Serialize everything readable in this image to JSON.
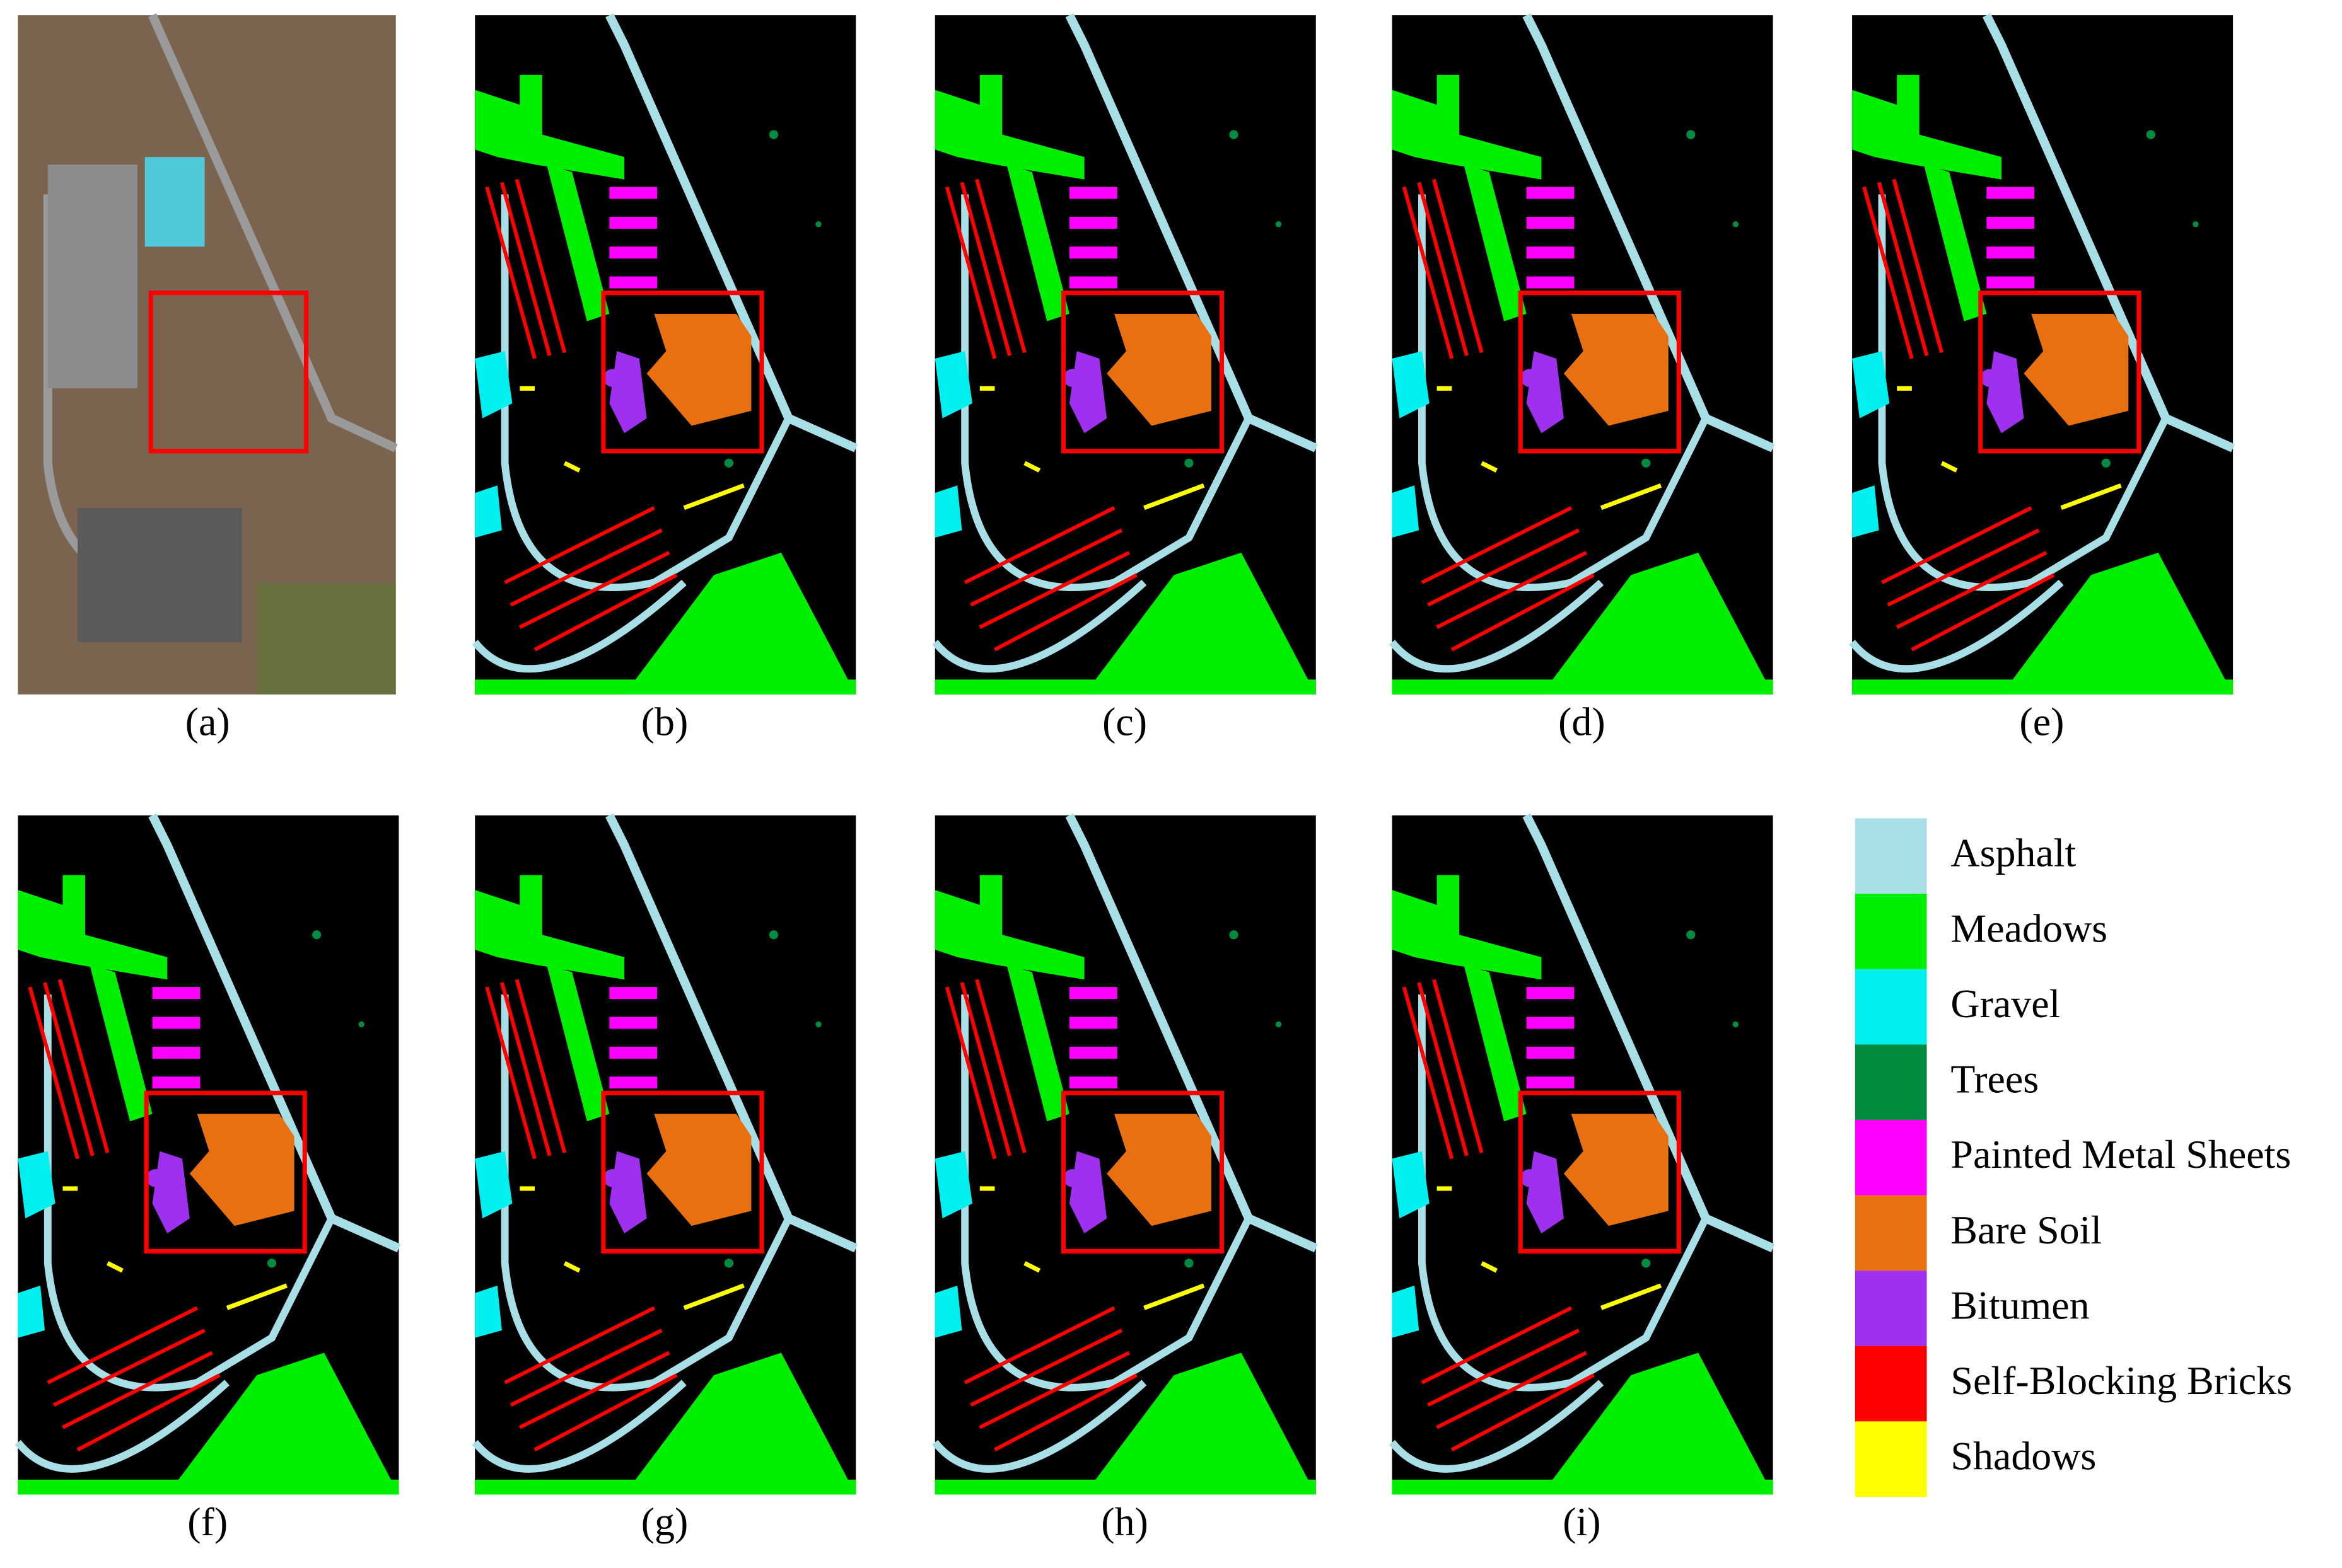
{
  "panels": [
    {
      "label": "(a)"
    },
    {
      "label": "(b)"
    },
    {
      "label": "(c)"
    },
    {
      "label": "(d)"
    },
    {
      "label": "(e)"
    },
    {
      "label": "(f)"
    },
    {
      "label": "(g)"
    },
    {
      "label": "(h)"
    },
    {
      "label": "(i)"
    }
  ],
  "legend": [
    {
      "name": "Asphalt",
      "color": "#a8dfe6"
    },
    {
      "name": "Meadows",
      "color": "#00ee00"
    },
    {
      "name": "Gravel",
      "color": "#00f0f0"
    },
    {
      "name": "Trees",
      "color": "#008c40"
    },
    {
      "name": "Painted Metal Sheets",
      "color": "#ff00ff"
    },
    {
      "name": "Bare Soil",
      "color": "#e87010"
    },
    {
      "name": "Bitumen",
      "color": "#a030f0"
    },
    {
      "name": "Self-Blocking Bricks",
      "color": "#ff0000"
    },
    {
      "name": "Shadows",
      "color": "#ffff00"
    }
  ]
}
